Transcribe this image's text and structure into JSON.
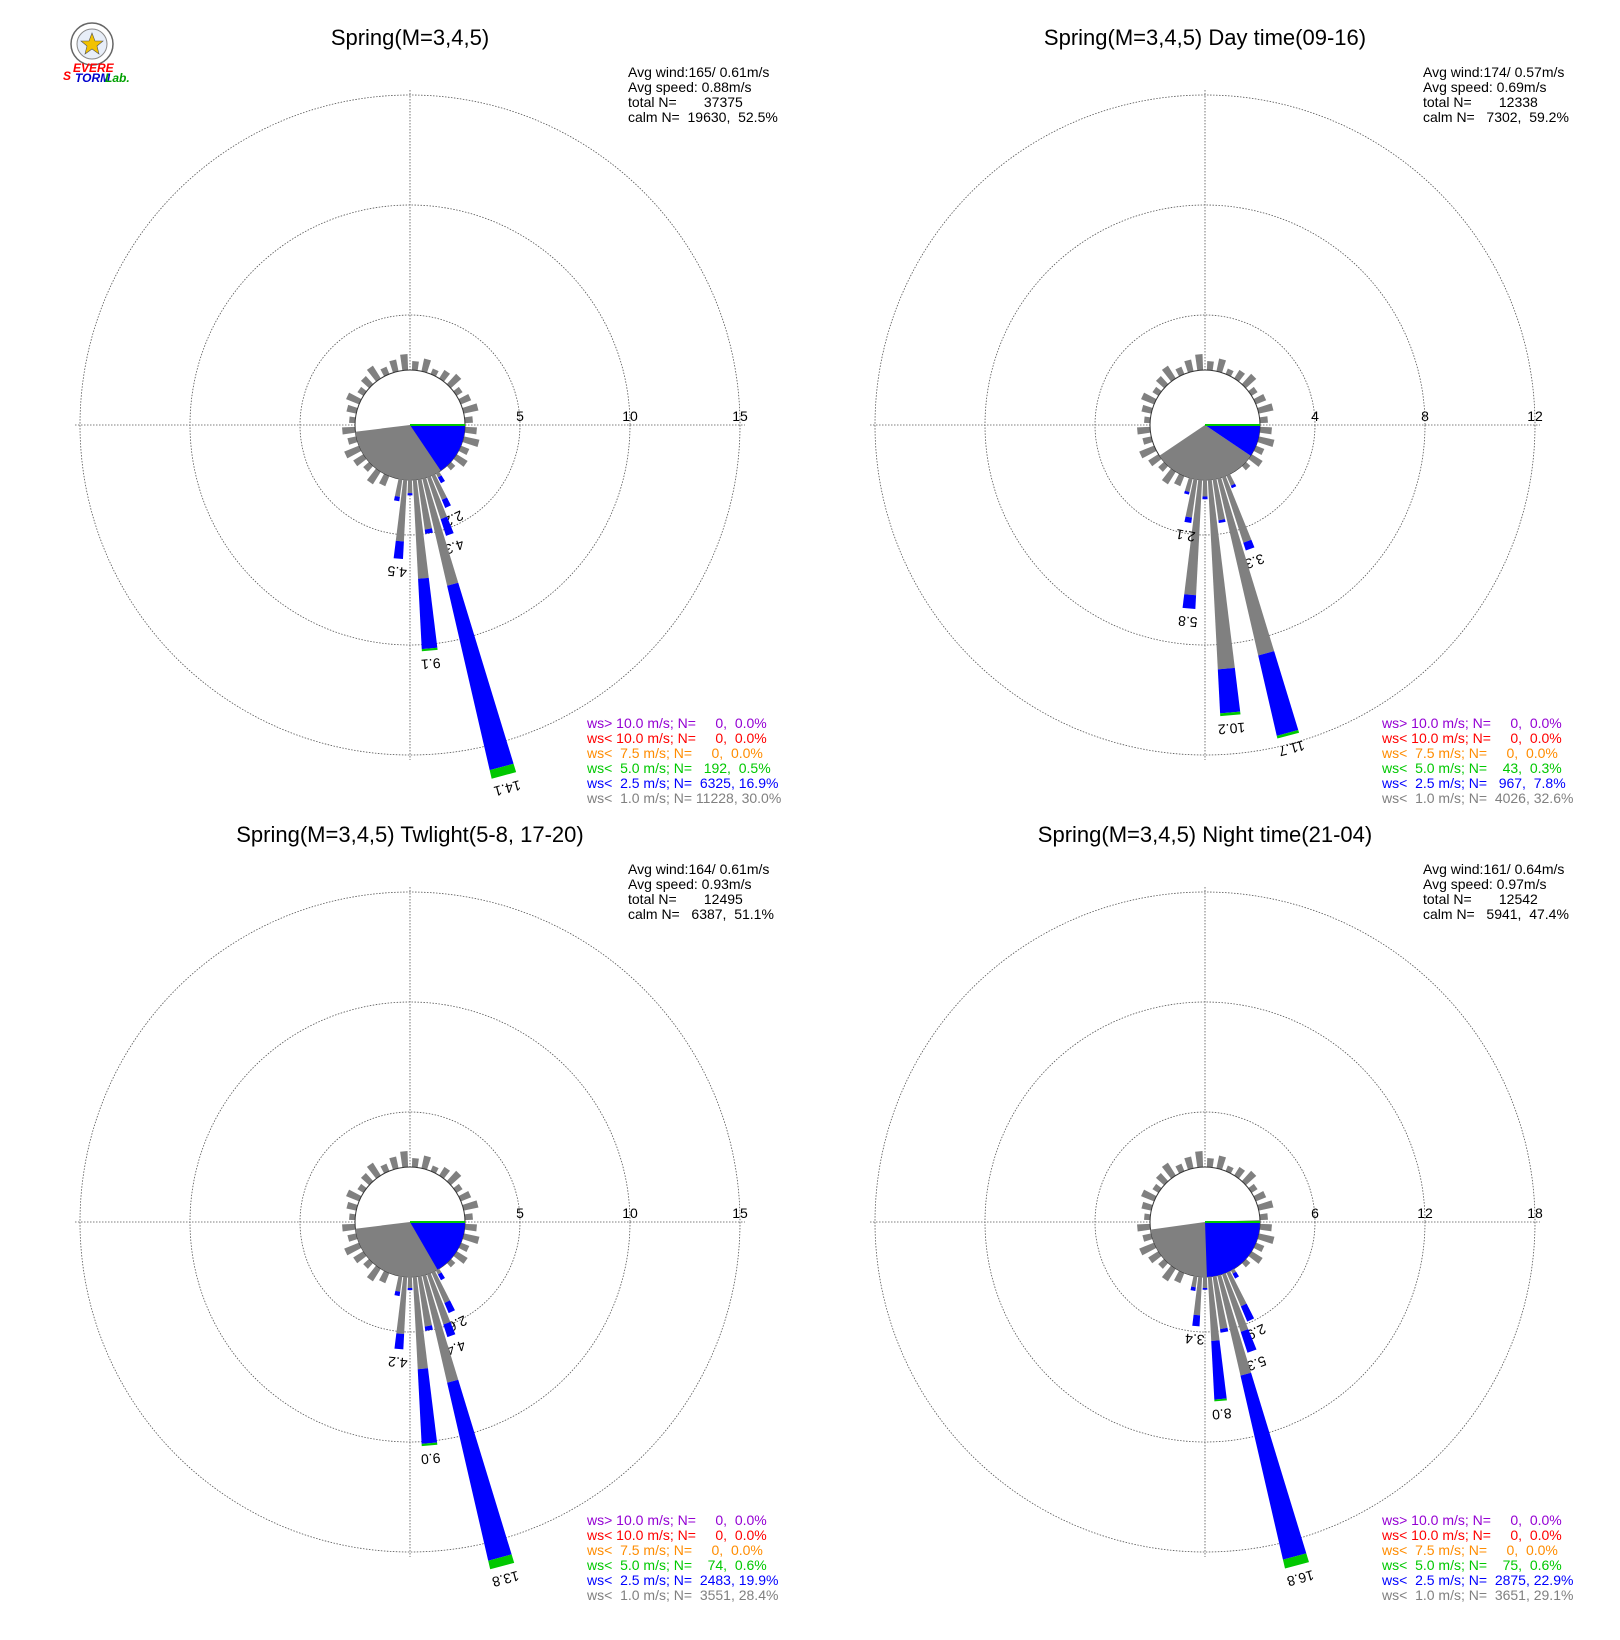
{
  "logo": {
    "name": "Severe Storm Lab.",
    "text_severe": "Severe",
    "text_storm": "Storm",
    "text_lab": "Lab."
  },
  "colors": {
    "calm": "#808080",
    "ws1": "#808080",
    "ws2_5": "#0000ff",
    "ws5": "#00c800",
    "ws7_5": "#ff8c00",
    "ws10": "#ff0000",
    "ws10plus": "#9400d3",
    "grid": "#555555"
  },
  "chart_data": [
    {
      "type": "windrose",
      "title": "Spring(M=3,4,5)",
      "rmax": 15,
      "ticks": [
        5,
        10,
        15
      ],
      "stats": {
        "avg_wind": "Avg wind:165/ 0.61m/s",
        "avg_speed": "Avg speed: 0.88m/s",
        "total": "total N=       37375",
        "calm": "calm N=  19630,  52.5%"
      },
      "legend": [
        "ws> 10.0 m/s; N=     0,  0.0%",
        "ws< 10.0 m/s; N=     0,  0.0%",
        "ws<  7.5 m/s; N=     0,  0.0%",
        "ws<  5.0 m/s; N=   192,  0.5%",
        "ws<  2.5 m/s; N=  6325, 16.9%",
        "ws<  1.0 m/s; N= 11228, 30.0%"
      ],
      "calm_wedge": {
        "gray": [
          99,
          263
        ],
        "blue": [
          90,
          146
        ]
      },
      "bars": [
        {
          "dir": 150,
          "gray": 0.2,
          "blue": 0.3
        },
        {
          "dir": 155,
          "gray": 1.2,
          "blue": 0.4,
          "label": "2.2"
        },
        {
          "dir": 160,
          "gray": 2.0,
          "blue": 0.8,
          "label": "4.3"
        },
        {
          "dir": 165,
          "gray": 5.0,
          "blue": 8.6,
          "green": 0.4,
          "label": "14.1"
        },
        {
          "dir": 170,
          "gray": 2.3,
          "blue": 0.2
        },
        {
          "dir": 175,
          "gray": 4.5,
          "blue": 3.2,
          "green": 0.1,
          "label": "9.1"
        },
        {
          "dir": 180,
          "gray": 0.6,
          "blue": 0.1
        },
        {
          "dir": 185,
          "gray": 2.8,
          "blue": 0.8,
          "label": "4.5"
        },
        {
          "dir": 190,
          "gray": 0.8,
          "blue": 0.2
        }
      ]
    },
    {
      "type": "windrose",
      "title": "Spring(M=3,4,5) Day time(09-16)",
      "rmax": 12,
      "ticks": [
        4,
        8,
        12
      ],
      "stats": {
        "avg_wind": "Avg wind:174/ 0.57m/s",
        "avg_speed": "Avg speed: 0.69m/s",
        "total": "total N=       12338",
        "calm": "calm N=   7302,  59.2%"
      },
      "legend": [
        "ws> 10.0 m/s; N=     0,  0.0%",
        "ws< 10.0 m/s; N=     0,  0.0%",
        "ws<  7.5 m/s; N=     0,  0.0%",
        "ws<  5.0 m/s; N=    43,  0.3%",
        "ws<  2.5 m/s; N=   967,  7.8%",
        "ws<  1.0 m/s; N=  4026, 32.6%"
      ],
      "calm_wedge": {
        "gray": [
          124,
          236
        ],
        "blue": [
          90,
          124
        ]
      },
      "bars": [
        {
          "dir": 155,
          "gray": 0.4,
          "blue": 0.1
        },
        {
          "dir": 160,
          "gray": 2.5,
          "blue": 0.3,
          "label": "3.3"
        },
        {
          "dir": 165,
          "gray": 6.6,
          "blue": 3.0,
          "green": 0.1,
          "label": "11.7"
        },
        {
          "dir": 170,
          "gray": 1.5,
          "blue": 0.1
        },
        {
          "dir": 175,
          "gray": 6.9,
          "blue": 1.6,
          "green": 0.1,
          "label": "10.2"
        },
        {
          "dir": 180,
          "gray": 0.6,
          "blue": 0.1
        },
        {
          "dir": 185,
          "gray": 4.2,
          "blue": 0.5,
          "label": "5.8"
        },
        {
          "dir": 190,
          "gray": 1.4,
          "blue": 0.2,
          "label": "2.1"
        },
        {
          "dir": 195,
          "gray": 0.5,
          "blue": 0.1
        }
      ]
    },
    {
      "type": "windrose",
      "title": "Spring(M=3,4,5) Twlight(5-8, 17-20)",
      "rmax": 15,
      "ticks": [
        5,
        10,
        15
      ],
      "stats": {
        "avg_wind": "Avg wind:164/ 0.61m/s",
        "avg_speed": "Avg speed: 0.93m/s",
        "total": "total N=       12495",
        "calm": "calm N=   6387,  51.1%"
      },
      "legend": [
        "ws> 10.0 m/s; N=     0,  0.0%",
        "ws< 10.0 m/s; N=     0,  0.0%",
        "ws<  7.5 m/s; N=     0,  0.0%",
        "ws<  5.0 m/s; N=    74,  0.6%",
        "ws<  2.5 m/s; N=  2483, 19.9%",
        "ws<  1.0 m/s; N=  3551, 28.4%"
      ],
      "calm_wedge": {
        "gray": [
          104,
          263
        ],
        "blue": [
          90,
          150
        ]
      },
      "bars": [
        {
          "dir": 150,
          "gray": 0.2,
          "blue": 0.3
        },
        {
          "dir": 155,
          "gray": 1.5,
          "blue": 0.5,
          "label": "2.6"
        },
        {
          "dir": 160,
          "gray": 2.4,
          "blue": 0.6,
          "label": "4.4"
        },
        {
          "dir": 165,
          "gray": 5.0,
          "blue": 8.3,
          "green": 0.4,
          "label": "13.8"
        },
        {
          "dir": 170,
          "gray": 2.3,
          "blue": 0.2
        },
        {
          "dir": 175,
          "gray": 4.2,
          "blue": 3.4,
          "green": 0.1,
          "label": "9.0"
        },
        {
          "dir": 180,
          "gray": 0.5,
          "blue": 0.1
        },
        {
          "dir": 185,
          "gray": 2.6,
          "blue": 0.7,
          "label": "4.2"
        },
        {
          "dir": 190,
          "gray": 0.7,
          "blue": 0.2
        }
      ]
    },
    {
      "type": "windrose",
      "title": "Spring(M=3,4,5) Night time(21-04)",
      "rmax": 18,
      "ticks": [
        6,
        12,
        18
      ],
      "stats": {
        "avg_wind": "Avg wind:161/ 0.64m/s",
        "avg_speed": "Avg speed: 0.97m/s",
        "total": "total N=       12542",
        "calm": "calm N=   5941,  47.4%"
      },
      "legend": [
        "ws> 10.0 m/s; N=     0,  0.0%",
        "ws< 10.0 m/s; N=     0,  0.0%",
        "ws<  7.5 m/s; N=     0,  0.0%",
        "ws<  5.0 m/s; N=    75,  0.6%",
        "ws<  2.5 m/s; N=  2875, 22.9%",
        "ws<  1.0 m/s; N=  3651, 29.1%"
      ],
      "calm_wedge": {
        "gray": [
          88,
          262
        ],
        "blue": [
          90,
          178
        ]
      },
      "bars": [
        {
          "dir": 150,
          "gray": 0.2,
          "blue": 0.3
        },
        {
          "dir": 155,
          "gray": 2.0,
          "blue": 0.9,
          "label": "2.9"
        },
        {
          "dir": 160,
          "gray": 3.3,
          "blue": 1.2,
          "label": "5.3"
        },
        {
          "dir": 165,
          "gray": 5.6,
          "blue": 10.3,
          "green": 0.5,
          "label": "16.8"
        },
        {
          "dir": 170,
          "gray": 2.9,
          "blue": 0.2
        },
        {
          "dir": 175,
          "gray": 3.5,
          "blue": 3.2,
          "green": 0.1,
          "label": "8.0"
        },
        {
          "dir": 180,
          "gray": 0.6,
          "blue": 0.1
        },
        {
          "dir": 185,
          "gray": 2.1,
          "blue": 0.6,
          "label": "3.4"
        },
        {
          "dir": 190,
          "gray": 0.6,
          "blue": 0.2
        }
      ]
    }
  ]
}
